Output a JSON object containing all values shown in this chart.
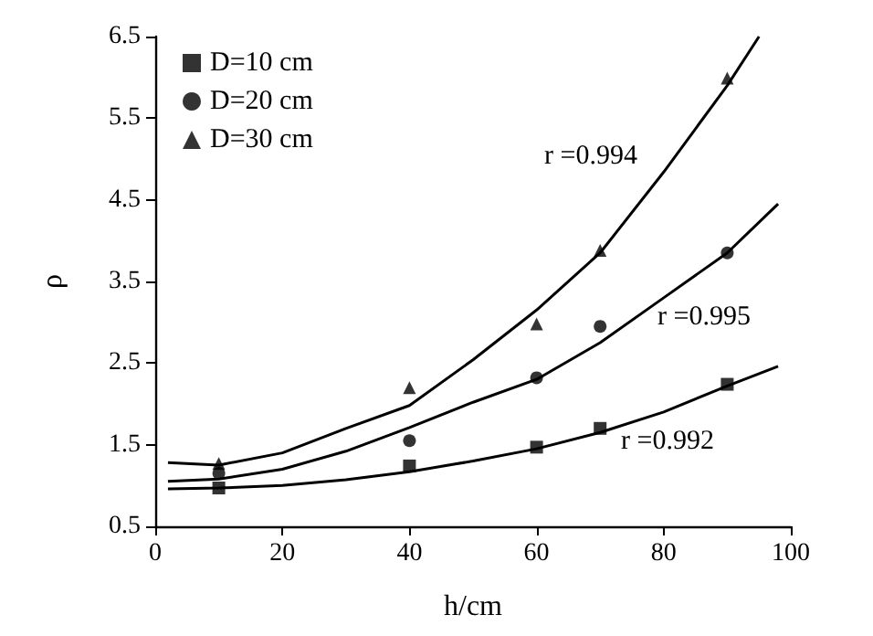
{
  "chart_data": {
    "type": "scatter",
    "xlabel": "h/cm",
    "ylabel": "ρ",
    "xlim": [
      0,
      100
    ],
    "xticks": [
      0,
      20,
      40,
      60,
      80,
      100
    ],
    "ylim": [
      0.5,
      6.5
    ],
    "yticks": [
      0.5,
      1.5,
      2.5,
      3.5,
      4.5,
      5.5,
      6.5
    ],
    "grid": false,
    "legend": "top left",
    "series": [
      {
        "name": "D=10 cm",
        "color": "#000000",
        "marker": "square",
        "x": [
          10,
          40,
          60,
          70,
          90
        ],
        "values": [
          0.97,
          1.24,
          1.47,
          1.7,
          2.24
        ]
      },
      {
        "name": "D=20 cm",
        "color": "#000000",
        "marker": "circle",
        "x": [
          10,
          40,
          60,
          70,
          90
        ],
        "values": [
          1.15,
          1.55,
          2.32,
          2.95,
          3.85
        ]
      },
      {
        "name": "D=30 cm",
        "color": "#000000",
        "marker": "triangle",
        "x": [
          10,
          40,
          60,
          70,
          90
        ],
        "values": [
          1.27,
          2.2,
          2.98,
          3.88,
          5.99
        ]
      },
      {
        "type": "line",
        "color": "#000000",
        "marker": "none",
        "x": [
          2,
          10,
          20,
          30,
          40,
          50,
          60,
          70,
          80,
          90,
          98
        ],
        "values": [
          0.96,
          0.97,
          1.0,
          1.07,
          1.17,
          1.3,
          1.45,
          1.65,
          1.9,
          2.22,
          2.46
        ]
      },
      {
        "type": "line",
        "color": "#000000",
        "marker": "none",
        "x": [
          2,
          10,
          20,
          30,
          40,
          50,
          60,
          70,
          80,
          90,
          98
        ],
        "values": [
          1.05,
          1.08,
          1.2,
          1.42,
          1.71,
          2.02,
          2.3,
          2.75,
          3.3,
          3.85,
          4.45
        ]
      },
      {
        "type": "line",
        "color": "#000000",
        "marker": "none",
        "x": [
          2,
          10,
          20,
          30,
          40,
          50,
          60,
          70,
          80,
          90,
          95
        ],
        "values": [
          1.28,
          1.25,
          1.4,
          1.7,
          1.98,
          2.54,
          3.15,
          3.85,
          4.84,
          5.9,
          6.5
        ]
      }
    ],
    "annotations": [
      "r =0.994",
      "r =0.995",
      "r =0.992"
    ]
  }
}
